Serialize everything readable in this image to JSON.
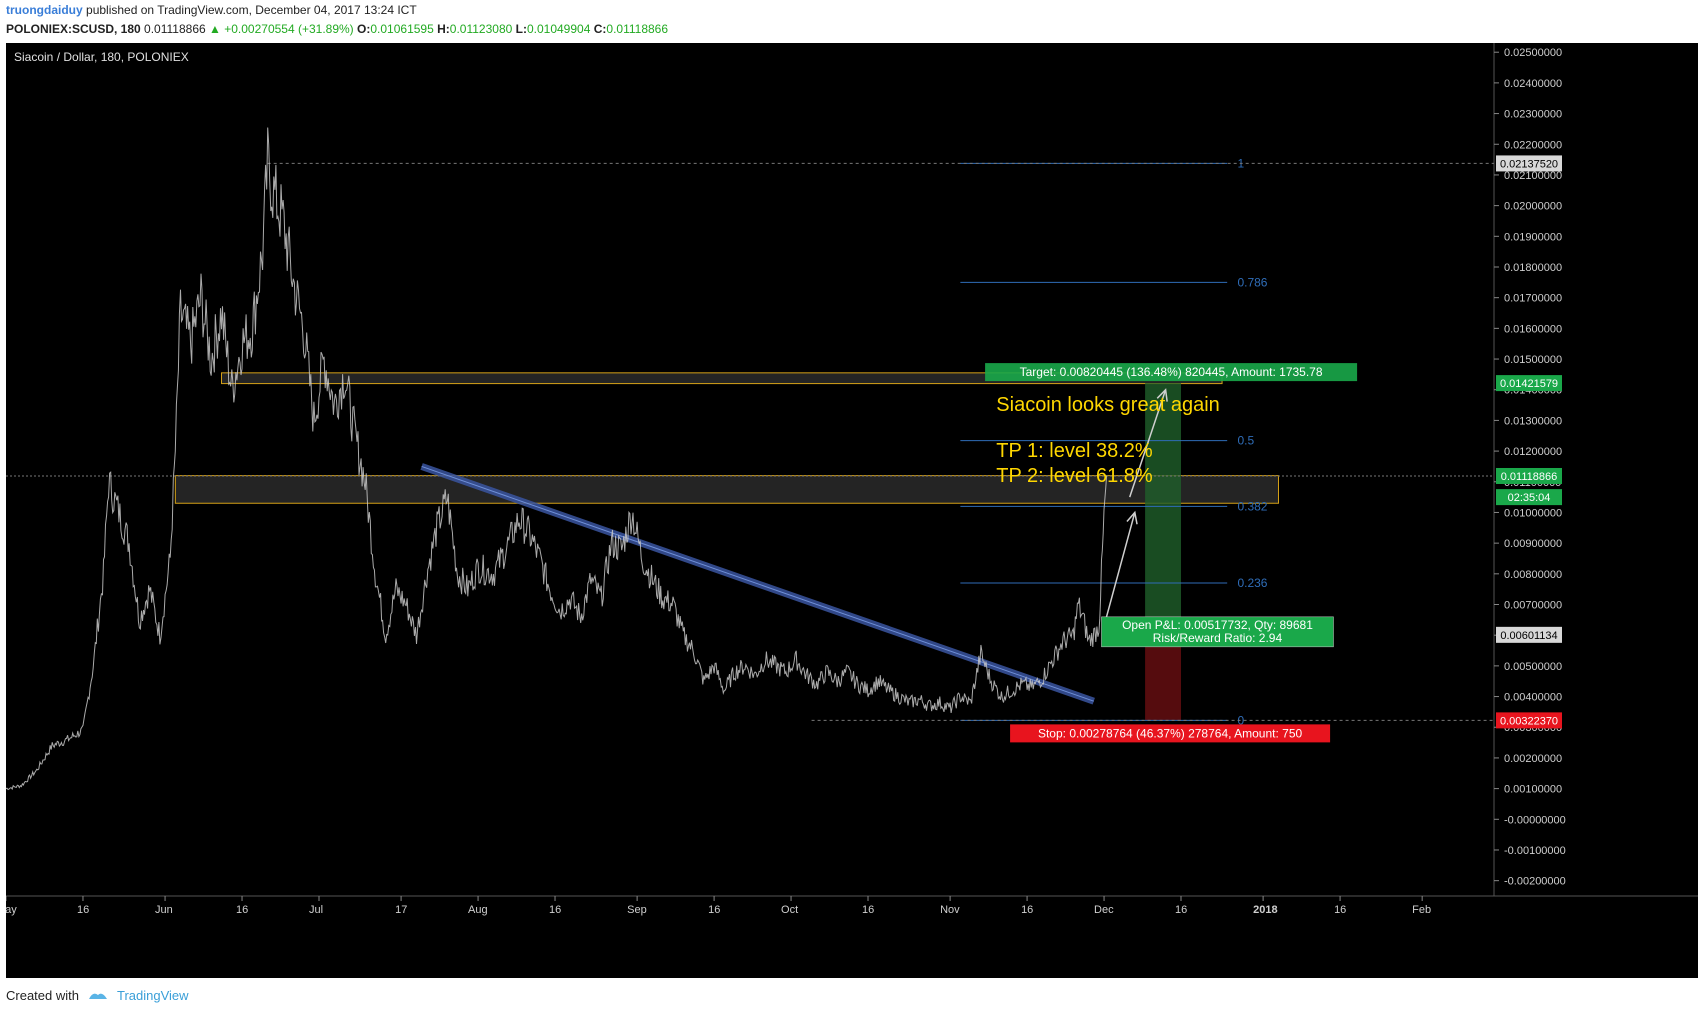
{
  "header": {
    "author": "truongdaiduy",
    "published_text": "published on TradingView.com, December 04, 2017 13:24 ICT",
    "symbol": "POLONIEX:SCUSD, 180",
    "last": "0.01118866",
    "change": "▲ +0.00270554 (+31.89%)",
    "o_label": "O:",
    "o": "0.01061595",
    "h_label": "H:",
    "h": "0.01123080",
    "l_label": "L:",
    "l": "0.01049904",
    "c_label": "C:",
    "c": "0.01118866"
  },
  "footer": {
    "created_with": "Created with",
    "brand": "TradingView",
    "logo_icon": "tradingview-logo-icon"
  },
  "chart_data": {
    "type": "line",
    "title": "Siacoin / Dollar, 180, POLONIEX",
    "ylim": [
      -0.0025,
      0.0253
    ],
    "y_ticks": [
      0.025,
      0.024,
      0.023,
      0.022,
      0.021,
      0.02,
      0.019,
      0.018,
      0.017,
      0.016,
      0.015,
      0.014,
      0.013,
      0.012,
      0.011,
      0.01,
      0.009,
      0.008,
      0.007,
      0.006,
      0.005,
      0.004,
      0.003,
      0.002,
      0.001,
      0.0,
      -0.001,
      -0.002
    ],
    "y_tick_labels": [
      "0.02500000",
      "0.02400000",
      "0.02300000",
      "0.02200000",
      "0.02100000",
      "0.02000000",
      "0.01900000",
      "0.01800000",
      "0.01700000",
      "0.01600000",
      "0.01500000",
      "0.01400000",
      "0.01300000",
      "0.01200000",
      "0.01100000",
      "0.01000000",
      "0.00900000",
      "0.00800000",
      "0.00700000",
      "0.00600000",
      "0.00500000",
      "0.00400000",
      "0.00300000",
      "0.00200000",
      "0.00100000",
      "-0.00000000",
      "-0.00100000",
      "-0.00200000"
    ],
    "x_ticks": [
      {
        "label": "May",
        "day": 0
      },
      {
        "label": "16",
        "day": 15
      },
      {
        "label": "Jun",
        "day": 31
      },
      {
        "label": "16",
        "day": 46
      },
      {
        "label": "Jul",
        "day": 61
      },
      {
        "label": "17",
        "day": 77
      },
      {
        "label": "Aug",
        "day": 92
      },
      {
        "label": "16",
        "day": 107
      },
      {
        "label": "Sep",
        "day": 123
      },
      {
        "label": "16",
        "day": 138
      },
      {
        "label": "Oct",
        "day": 153
      },
      {
        "label": "16",
        "day": 168
      },
      {
        "label": "Nov",
        "day": 184
      },
      {
        "label": "16",
        "day": 199
      },
      {
        "label": "Dec",
        "day": 214
      },
      {
        "label": "16",
        "day": 229
      },
      {
        "label": "2018",
        "day": 245
      },
      {
        "label": "16",
        "day": 260
      },
      {
        "label": "Feb",
        "day": 276
      }
    ],
    "price_points": [
      [
        0,
        0.001
      ],
      [
        3,
        0.0011
      ],
      [
        6,
        0.0016
      ],
      [
        9,
        0.0024
      ],
      [
        12,
        0.0026
      ],
      [
        15,
        0.0029
      ],
      [
        17,
        0.005
      ],
      [
        19,
        0.008
      ],
      [
        20,
        0.011
      ],
      [
        22,
        0.01
      ],
      [
        24,
        0.009
      ],
      [
        26,
        0.0065
      ],
      [
        28,
        0.0075
      ],
      [
        30,
        0.006
      ],
      [
        32,
        0.0085
      ],
      [
        33,
        0.012
      ],
      [
        34,
        0.0165
      ],
      [
        36,
        0.0155
      ],
      [
        38,
        0.017
      ],
      [
        40,
        0.015
      ],
      [
        42,
        0.0165
      ],
      [
        44,
        0.014
      ],
      [
        46,
        0.0155
      ],
      [
        48,
        0.016
      ],
      [
        50,
        0.0185
      ],
      [
        51,
        0.0214
      ],
      [
        52,
        0.0205
      ],
      [
        54,
        0.0195
      ],
      [
        56,
        0.0175
      ],
      [
        58,
        0.016
      ],
      [
        60,
        0.013
      ],
      [
        62,
        0.015
      ],
      [
        64,
        0.0135
      ],
      [
        66,
        0.0145
      ],
      [
        68,
        0.0125
      ],
      [
        70,
        0.011
      ],
      [
        72,
        0.008
      ],
      [
        74,
        0.006
      ],
      [
        76,
        0.0075
      ],
      [
        78,
        0.007
      ],
      [
        80,
        0.006
      ],
      [
        82,
        0.008
      ],
      [
        84,
        0.0095
      ],
      [
        86,
        0.0105
      ],
      [
        88,
        0.008
      ],
      [
        90,
        0.0075
      ],
      [
        92,
        0.0082
      ],
      [
        95,
        0.008
      ],
      [
        98,
        0.009
      ],
      [
        100,
        0.0098
      ],
      [
        102,
        0.0093
      ],
      [
        104,
        0.0085
      ],
      [
        106,
        0.0075
      ],
      [
        108,
        0.0068
      ],
      [
        110,
        0.0072
      ],
      [
        112,
        0.0066
      ],
      [
        114,
        0.0078
      ],
      [
        116,
        0.0072
      ],
      [
        118,
        0.009
      ],
      [
        120,
        0.0088
      ],
      [
        122,
        0.01
      ],
      [
        124,
        0.0085
      ],
      [
        126,
        0.0078
      ],
      [
        128,
        0.0072
      ],
      [
        130,
        0.007
      ],
      [
        132,
        0.006
      ],
      [
        134,
        0.0055
      ],
      [
        136,
        0.0045
      ],
      [
        138,
        0.005
      ],
      [
        140,
        0.0042
      ],
      [
        142,
        0.0048
      ],
      [
        144,
        0.005
      ],
      [
        146,
        0.0047
      ],
      [
        148,
        0.0052
      ],
      [
        150,
        0.005
      ],
      [
        152,
        0.0048
      ],
      [
        154,
        0.0052
      ],
      [
        156,
        0.0047
      ],
      [
        158,
        0.0044
      ],
      [
        160,
        0.0048
      ],
      [
        162,
        0.0045
      ],
      [
        164,
        0.0048
      ],
      [
        166,
        0.0044
      ],
      [
        168,
        0.0042
      ],
      [
        170,
        0.0045
      ],
      [
        172,
        0.0042
      ],
      [
        174,
        0.004
      ],
      [
        176,
        0.0038
      ],
      [
        178,
        0.0039
      ],
      [
        180,
        0.0037
      ],
      [
        182,
        0.0038
      ],
      [
        184,
        0.0036
      ],
      [
        186,
        0.004
      ],
      [
        188,
        0.0038
      ],
      [
        190,
        0.0054
      ],
      [
        192,
        0.0045
      ],
      [
        194,
        0.004
      ],
      [
        196,
        0.0042
      ],
      [
        198,
        0.0044
      ],
      [
        200,
        0.0043
      ],
      [
        202,
        0.0046
      ],
      [
        204,
        0.0052
      ],
      [
        206,
        0.0058
      ],
      [
        208,
        0.006
      ],
      [
        209,
        0.007
      ],
      [
        210,
        0.0065
      ],
      [
        211,
        0.0058
      ],
      [
        212,
        0.006
      ],
      [
        213,
        0.0063
      ],
      [
        213.5,
        0.008
      ],
      [
        214,
        0.0098
      ],
      [
        214.5,
        0.0112
      ]
    ],
    "last_price": 0.01118866,
    "annotations": {
      "text_lines": [
        "Siacoin looks great again",
        "TP 1: level 38.2%",
        "TP 2: level 61.8%"
      ],
      "fib_levels": [
        {
          "label": "1",
          "value": 0.0213752
        },
        {
          "label": "0.786",
          "value": 0.0175
        },
        {
          "label": "0.5",
          "value": 0.01234
        },
        {
          "label": "0.382",
          "value": 0.0102
        },
        {
          "label": "0.236",
          "value": 0.0077
        },
        {
          "label": "0",
          "value": 0.0032237
        }
      ],
      "zones": [
        {
          "from_day": 42,
          "to_day": 237,
          "low": 0.0142,
          "high": 0.01455
        },
        {
          "from_day": 33,
          "to_day": 248,
          "low": 0.0103,
          "high": 0.0112
        }
      ],
      "trendline": {
        "from": [
          81,
          0.0115
        ],
        "to": [
          212,
          0.00385
        ]
      },
      "arrows": [
        {
          "from": [
            214,
            0.0063
          ],
          "to": [
            220,
            0.01
          ]
        },
        {
          "from": [
            219,
            0.0105
          ],
          "to": [
            226,
            0.014
          ]
        }
      ],
      "position": {
        "from_day": 222,
        "to_day": 229,
        "entry": 0.00601134,
        "target": 0.01421579,
        "stop": 0.0032237,
        "target_label": "Target: 0.00820445 (136.48%) 820445, Amount: 1735.78",
        "open_pl_label": "Open P&L: 0.00517732, Qty: 89681",
        "rr_label": "Risk/Reward Ratio: 2.94",
        "stop_label": "Stop: 0.00278764 (46.37%) 278764, Amount: 750"
      },
      "price_tags": [
        {
          "label": "0.02137520",
          "value": 0.0213752,
          "color": "#d8d8d8",
          "text": "#000000"
        },
        {
          "label": "0.01421579",
          "value": 0.01421579,
          "color": "#1aa84a",
          "text": "#ffffff"
        },
        {
          "label": "0.01118866",
          "value": 0.01118866,
          "color": "#1aa84a",
          "text": "#ffffff"
        },
        {
          "label": "02:35:04",
          "value": 0.0105,
          "color": "#1aa84a",
          "text": "#ffffff"
        },
        {
          "label": "0.00601134",
          "value": 0.00601134,
          "color": "#d8d8d8",
          "text": "#000000"
        },
        {
          "label": "0.00322370",
          "value": 0.0032237,
          "color": "#e8141e",
          "text": "#ffffff"
        }
      ]
    },
    "colors": {
      "background": "#000000",
      "candle": "#c8c8c8",
      "zone_border": "#d4a017",
      "zone_fill": "#2a2a2a",
      "fib": "#2f6db8",
      "trendline": "#3a55a0",
      "annotation_text": "#ffd700",
      "target": "#1aa84a",
      "stop": "#e8141e"
    }
  }
}
